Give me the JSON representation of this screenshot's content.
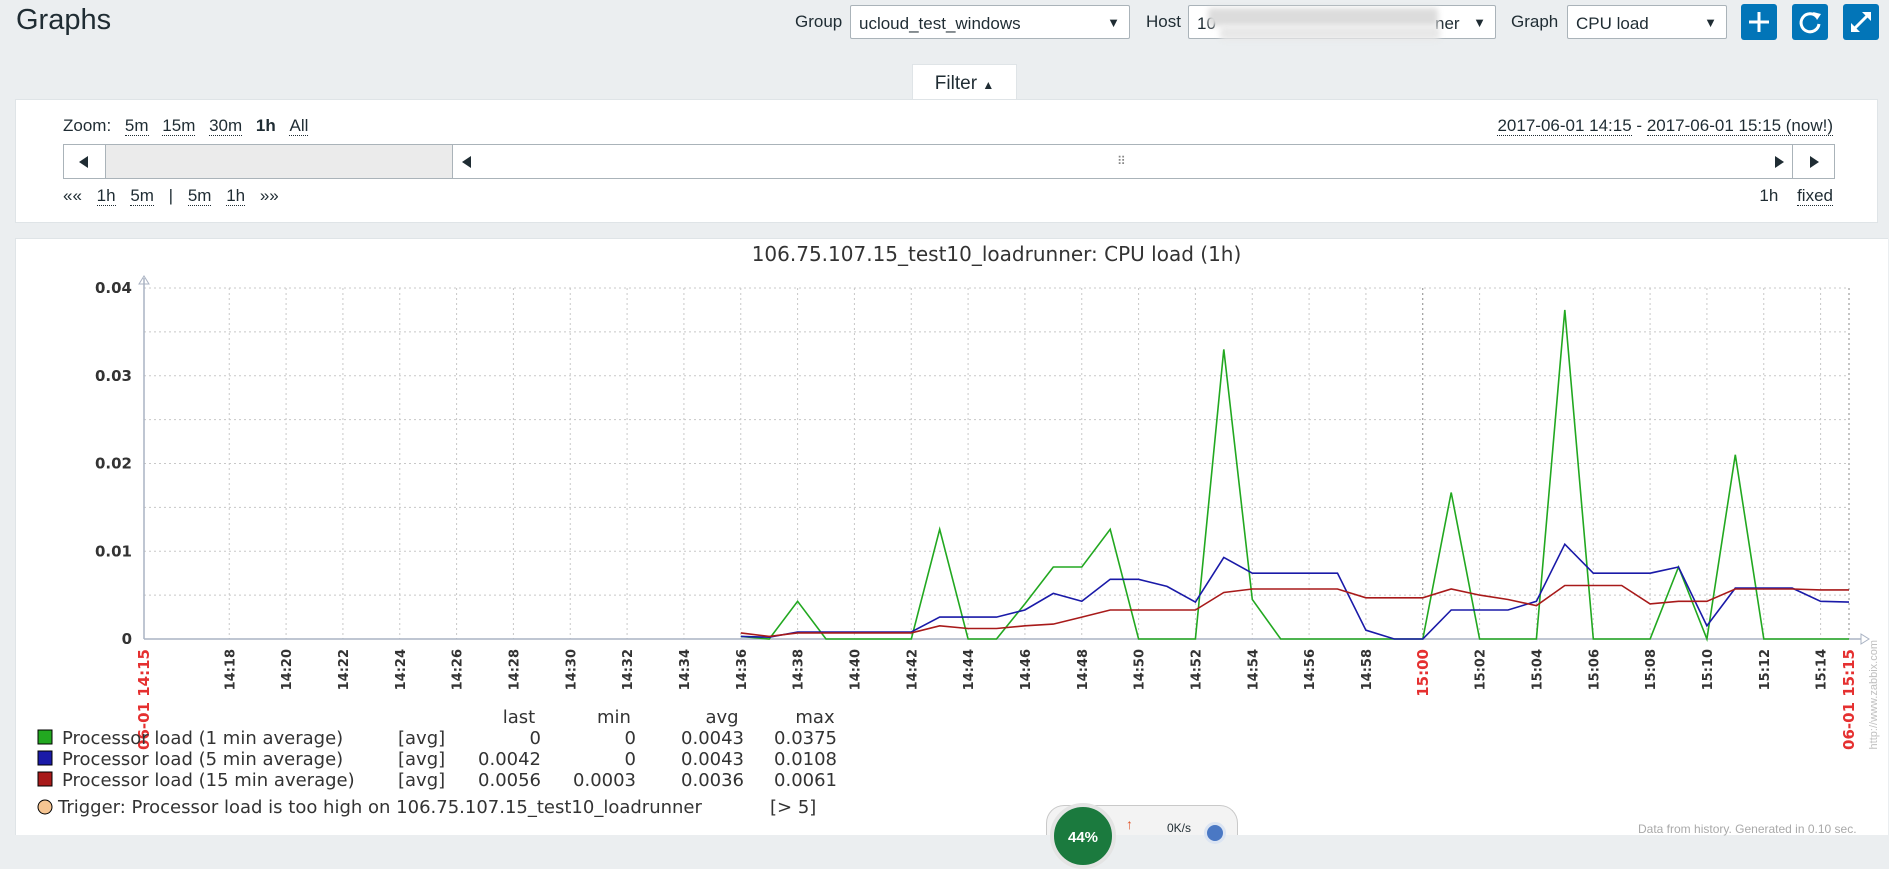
{
  "header": {
    "title": "Graphs",
    "group_label": "Group",
    "group_value": "ucloud_test_windows",
    "host_label": "Host",
    "host_value_prefix": "10",
    "host_value_suffix": "ner",
    "graph_label": "Graph",
    "graph_value": "CPU load",
    "icons": [
      "plus-icon",
      "refresh-icon",
      "fullscreen-icon"
    ],
    "accent": "#0275b8"
  },
  "filter": {
    "tab_label": "Filter",
    "zoom_label": "Zoom:",
    "zoom_options": [
      "5m",
      "15m",
      "30m",
      "1h",
      "All"
    ],
    "zoom_selected": "1h",
    "period_from": "2017-06-01 14:15",
    "period_sep": " - ",
    "period_to": "2017-06-01 15:15 (now!)",
    "nav": [
      "««",
      "1h",
      "5m",
      "|",
      "5m",
      "1h",
      "»»"
    ],
    "period_length": "1h",
    "fixed_label": "fixed"
  },
  "graph": {
    "legend_headers": [
      "last",
      "min",
      "avg",
      "max"
    ],
    "legend_rows": [
      {
        "name": "Processor load (1 min average)",
        "func": "[avg]",
        "last": "0",
        "min": "0",
        "avg": "0.0043",
        "max": "0.0375",
        "color": "#22a820"
      },
      {
        "name": "Processor load (5 min average)",
        "func": "[avg]",
        "last": "0.0042",
        "min": "0",
        "avg": "0.0043",
        "max": "0.0108",
        "color": "#1a1aa8"
      },
      {
        "name": "Processor load (15 min average)",
        "func": "[avg]",
        "last": "0.0056",
        "min": "0.0003",
        "avg": "0.0036",
        "max": "0.0061",
        "color": "#a81a1a"
      }
    ],
    "trigger": "Trigger: Processor load is too high on 106.75.107.15_test10_loadrunner",
    "trigger_threshold": "[> 5]",
    "trigger_color": "#f6c592"
  },
  "bottom_widget": {
    "percent": "44%",
    "rate": "0K/s"
  },
  "footnote": "Data from history. Generated in 0.10 sec.",
  "watermark": "http://www.zabbix.com",
  "chart_data": {
    "type": "line",
    "title": "106.75.107.15_test10_loadrunner: CPU load (1h)",
    "xlabel": "",
    "ylabel": "",
    "x_range": [
      "2017-06-01 14:15",
      "2017-06-01 15:15"
    ],
    "ylim": [
      0,
      0.04
    ],
    "y_ticks": [
      0,
      0.01,
      0.02,
      0.03,
      0.04
    ],
    "y_tick_labels": [
      "0",
      "0.01",
      "0.02",
      "0.03",
      "0.04"
    ],
    "x_tick_labels": [
      {
        "label": "06-01 14:15",
        "min": 0,
        "red": true
      },
      {
        "label": "14:18",
        "min": 3
      },
      {
        "label": "14:20",
        "min": 5
      },
      {
        "label": "14:22",
        "min": 7
      },
      {
        "label": "14:24",
        "min": 9
      },
      {
        "label": "14:26",
        "min": 11
      },
      {
        "label": "14:28",
        "min": 13
      },
      {
        "label": "14:30",
        "min": 15
      },
      {
        "label": "14:32",
        "min": 17
      },
      {
        "label": "14:34",
        "min": 19
      },
      {
        "label": "14:36",
        "min": 21
      },
      {
        "label": "14:38",
        "min": 23
      },
      {
        "label": "14:40",
        "min": 25
      },
      {
        "label": "14:42",
        "min": 27
      },
      {
        "label": "14:44",
        "min": 29
      },
      {
        "label": "14:46",
        "min": 31
      },
      {
        "label": "14:48",
        "min": 33
      },
      {
        "label": "14:50",
        "min": 35
      },
      {
        "label": "14:52",
        "min": 37
      },
      {
        "label": "14:54",
        "min": 39
      },
      {
        "label": "14:56",
        "min": 41
      },
      {
        "label": "14:58",
        "min": 43
      },
      {
        "label": "15:00",
        "min": 45,
        "red": true
      },
      {
        "label": "15:02",
        "min": 47
      },
      {
        "label": "15:04",
        "min": 49
      },
      {
        "label": "15:06",
        "min": 51
      },
      {
        "label": "15:08",
        "min": 53
      },
      {
        "label": "15:10",
        "min": 55
      },
      {
        "label": "15:12",
        "min": 57
      },
      {
        "label": "15:14",
        "min": 59
      },
      {
        "label": "06-01 15:15",
        "min": 60,
        "red": true
      }
    ],
    "grid": true,
    "series": [
      {
        "name": "Processor load (1 min average)",
        "color": "#22a820",
        "x": [
          21,
          22,
          23,
          24,
          25,
          26,
          27,
          28,
          29,
          30,
          31,
          32,
          33,
          34,
          35,
          36,
          37,
          38,
          39,
          40,
          41,
          42,
          43,
          44,
          45,
          46,
          47,
          48,
          49,
          50,
          51,
          52,
          53,
          54,
          55,
          56,
          57,
          58,
          59,
          60
        ],
        "y": [
          0.0003,
          0,
          0.0043,
          0,
          0,
          0,
          0,
          0.0125,
          0,
          0,
          0.004,
          0.0082,
          0.0082,
          0.0125,
          0,
          0,
          0,
          0.033,
          0.0045,
          0,
          0,
          0,
          0,
          0,
          0,
          0.0167,
          0,
          0,
          0,
          0.0375,
          0,
          0,
          0,
          0.0082,
          0,
          0.021,
          0,
          0,
          0,
          0
        ]
      },
      {
        "name": "Processor load (5 min average)",
        "color": "#1a1aa8",
        "x": [
          21,
          22,
          23,
          24,
          25,
          26,
          27,
          28,
          29,
          30,
          31,
          32,
          33,
          34,
          35,
          36,
          37,
          38,
          39,
          40,
          41,
          42,
          43,
          44,
          45,
          46,
          47,
          48,
          49,
          50,
          51,
          52,
          53,
          54,
          55,
          56,
          57,
          58,
          59,
          60
        ],
        "y": [
          0.0003,
          0.0002,
          0.0008,
          0.0008,
          0.0008,
          0.0008,
          0.0008,
          0.0025,
          0.0025,
          0.0025,
          0.0033,
          0.0052,
          0.0043,
          0.0068,
          0.0068,
          0.006,
          0.0042,
          0.0093,
          0.0075,
          0.0075,
          0.0075,
          0.0075,
          0.001,
          0,
          0,
          0.0033,
          0.0033,
          0.0033,
          0.0043,
          0.0108,
          0.0075,
          0.0075,
          0.0075,
          0.0082,
          0.0015,
          0.0058,
          0.0058,
          0.0058,
          0.0043,
          0.0042
        ]
      },
      {
        "name": "Processor load (15 min average)",
        "color": "#a81a1a",
        "x": [
          21,
          22,
          23,
          24,
          25,
          26,
          27,
          28,
          29,
          30,
          31,
          32,
          33,
          34,
          35,
          36,
          37,
          38,
          39,
          40,
          41,
          42,
          43,
          44,
          45,
          46,
          47,
          48,
          49,
          50,
          51,
          52,
          53,
          54,
          55,
          56,
          57,
          58,
          59,
          60
        ],
        "y": [
          0.0007,
          0.0003,
          0.0007,
          0.0007,
          0.0007,
          0.0007,
          0.0007,
          0.0015,
          0.0012,
          0.0012,
          0.0015,
          0.0017,
          0.0025,
          0.0033,
          0.0033,
          0.0033,
          0.0033,
          0.0053,
          0.0057,
          0.0057,
          0.0057,
          0.0057,
          0.0047,
          0.0047,
          0.0047,
          0.0057,
          0.005,
          0.0045,
          0.0038,
          0.0061,
          0.0061,
          0.0061,
          0.004,
          0.0043,
          0.0043,
          0.0057,
          0.0057,
          0.0057,
          0.0056,
          0.0056
        ]
      }
    ]
  }
}
